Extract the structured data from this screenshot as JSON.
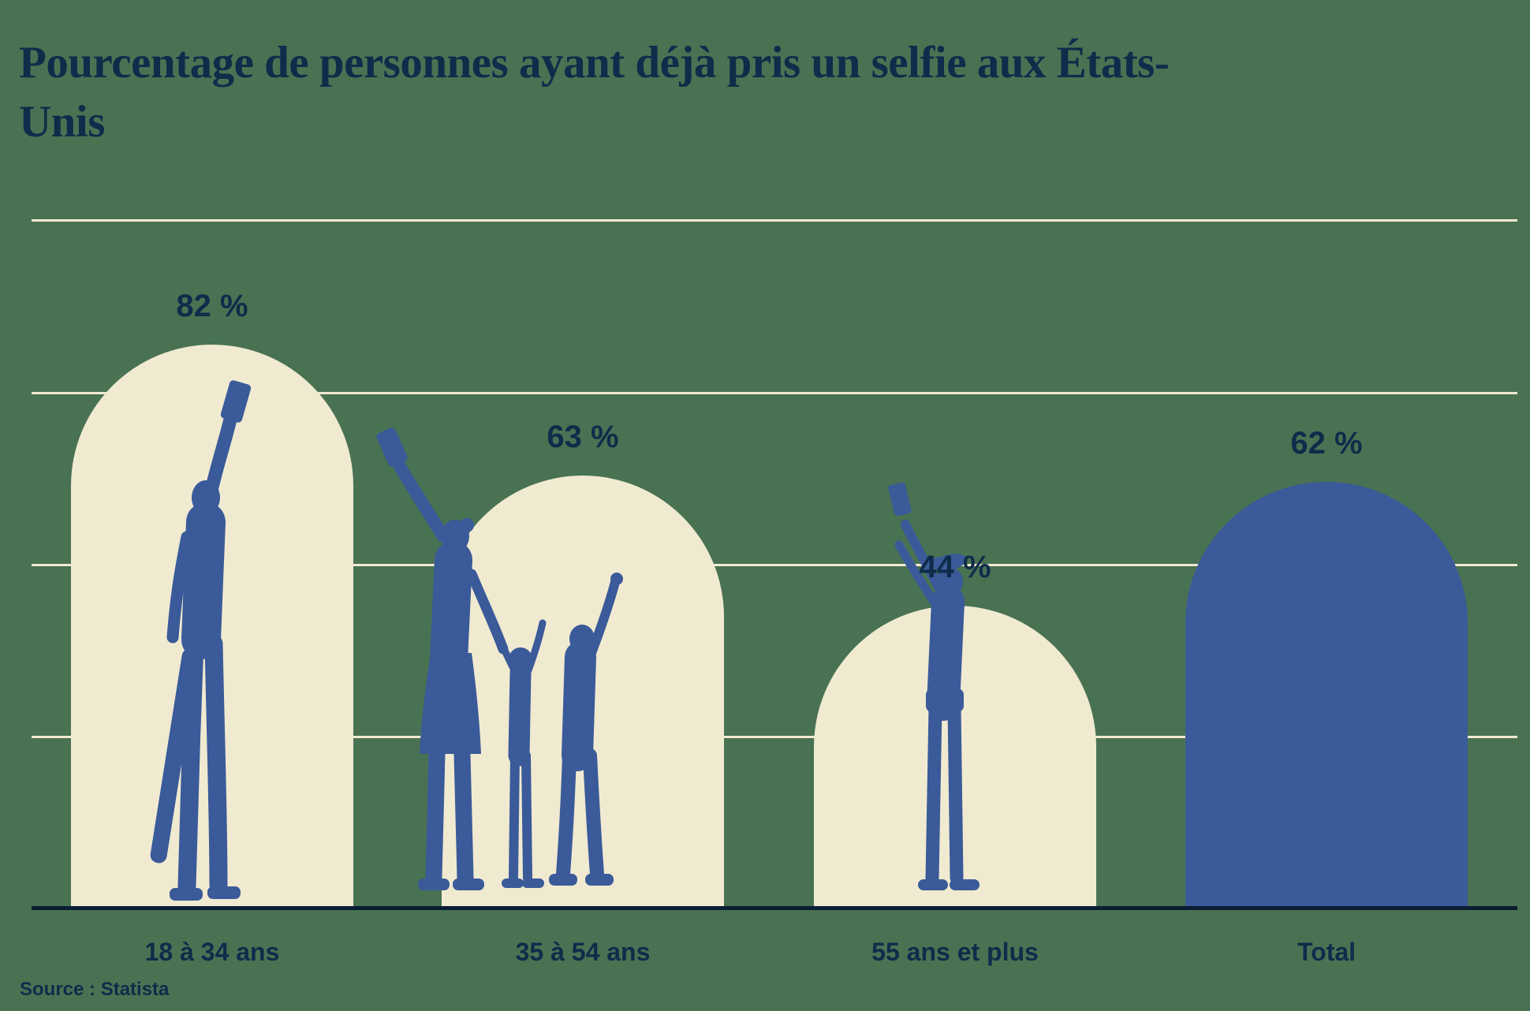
{
  "title": "Pourcentage de personnes ayant déjà pris un selfie aux États-Unis",
  "source": "Source : Statista",
  "colors": {
    "background": "#497253",
    "bar_cream": "#F0EAD1",
    "bar_blue": "#3A5A99",
    "text_navy": "#0F2C4A",
    "axis": "#0A1E33",
    "gridline": "#F0EAD1"
  },
  "chart_data": {
    "type": "bar",
    "title": "Pourcentage de personnes ayant déjà pris un selfie aux États-Unis",
    "source": "Source : Statista",
    "categories": [
      "18 à 34 ans",
      "35 à 54 ans",
      "55 ans et plus",
      "Total"
    ],
    "values": [
      82,
      63,
      44,
      62
    ],
    "value_labels": [
      "82 %",
      "63 %",
      "44 %",
      "62 %"
    ],
    "unit": "%",
    "ylim": [
      0,
      100
    ],
    "gridlines": [
      25,
      50,
      75,
      100
    ],
    "grid": "on",
    "legend": "none",
    "xlabel": "",
    "ylabel": "",
    "bar_colors": [
      "cream",
      "cream",
      "cream",
      "blue"
    ],
    "bar_shape": "rounded-arch-top",
    "silhouettes": [
      "young-adult-selfie-with-skateboard",
      "family-selfie",
      "senior-selfie",
      "none"
    ]
  }
}
